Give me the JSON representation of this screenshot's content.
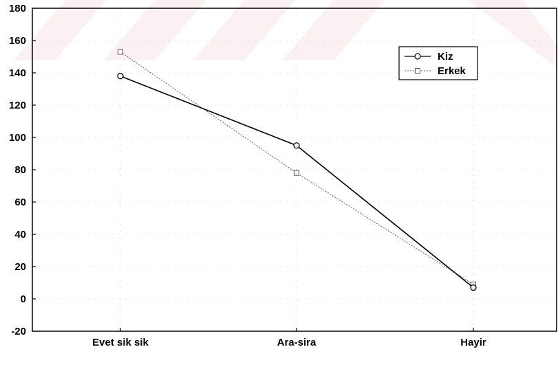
{
  "chart_data": {
    "type": "line",
    "title": "",
    "xlabel": "",
    "ylabel": "",
    "categories": [
      "Evet sik sik",
      "Ara-sira",
      "Hayir"
    ],
    "ylim": [
      -20,
      180
    ],
    "yticks": [
      -20,
      0,
      20,
      40,
      60,
      80,
      100,
      120,
      140,
      160,
      180
    ],
    "grid": true,
    "legend_position": "top-right",
    "series": [
      {
        "name": "Kiz",
        "values": [
          138,
          95,
          7
        ],
        "marker": "circle",
        "line": "solid",
        "color": "#000000"
      },
      {
        "name": "Erkek",
        "values": [
          153,
          78,
          9
        ],
        "marker": "square",
        "line": "dotted",
        "color": "#555555"
      }
    ]
  },
  "watermark_color": "#c0392b"
}
